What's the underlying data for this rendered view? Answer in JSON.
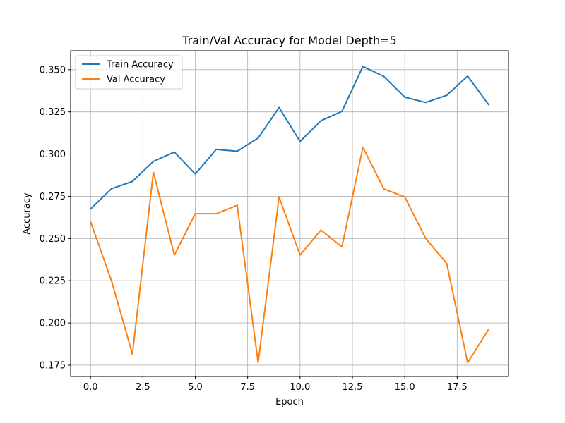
{
  "chart_data": {
    "type": "line",
    "title": "Train/Val Accuracy for Model Depth=5",
    "xlabel": "Epoch",
    "ylabel": "Accuracy",
    "xlim": [
      -0.95,
      19.95
    ],
    "ylim": [
      0.1683,
      0.3612
    ],
    "xticks": [
      0.0,
      2.5,
      5.0,
      7.5,
      10.0,
      12.5,
      15.0,
      17.5
    ],
    "xtick_labels": [
      "0.0",
      "2.5",
      "5.0",
      "7.5",
      "10.0",
      "12.5",
      "15.0",
      "17.5"
    ],
    "yticks": [
      0.175,
      0.2,
      0.225,
      0.25,
      0.275,
      0.3,
      0.325,
      0.35
    ],
    "ytick_labels": [
      "0.175",
      "0.200",
      "0.225",
      "0.250",
      "0.275",
      "0.300",
      "0.325",
      "0.350"
    ],
    "grid": true,
    "legend_position": "top-left",
    "x": [
      0,
      1,
      2,
      3,
      4,
      5,
      6,
      7,
      8,
      9,
      10,
      11,
      12,
      13,
      14,
      15,
      16,
      17,
      18,
      19
    ],
    "series": [
      {
        "name": "Train Accuracy",
        "color": "#1f77b4",
        "values": [
          0.2675,
          0.2795,
          0.2838,
          0.2957,
          0.3012,
          0.2882,
          0.3028,
          0.3017,
          0.3095,
          0.3276,
          0.3075,
          0.3198,
          0.3253,
          0.3519,
          0.346,
          0.3337,
          0.3306,
          0.3348,
          0.3462,
          0.3293
        ]
      },
      {
        "name": "Val Accuracy",
        "color": "#ff7f0e",
        "values": [
          0.26,
          0.225,
          0.1815,
          0.2893,
          0.2402,
          0.2647,
          0.2647,
          0.2697,
          0.1765,
          0.2746,
          0.2402,
          0.255,
          0.2451,
          0.304,
          0.2794,
          0.2746,
          0.25,
          0.2353,
          0.1765,
          0.1962
        ]
      }
    ]
  }
}
